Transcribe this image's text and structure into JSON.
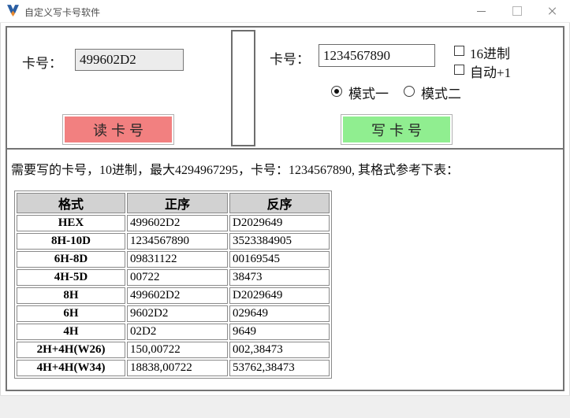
{
  "window": {
    "title": "自定义写卡号软件",
    "controls": [
      "minimize-icon",
      "maximize-icon",
      "close-icon"
    ]
  },
  "top_panel": {
    "read_section": {
      "card_label": "卡号：",
      "card_value": "499602D2",
      "read_button_label": "读卡号"
    },
    "write_section": {
      "card_label": "卡号：",
      "card_value": "1234567890",
      "checkboxes": [
        {
          "label": "16进制",
          "checked": false
        },
        {
          "label": "自动+1",
          "checked": false
        }
      ],
      "radios": [
        {
          "label": "模式一",
          "selected": true
        },
        {
          "label": "模式二",
          "selected": false
        }
      ],
      "write_button_label": "写卡号"
    }
  },
  "description": "需要写的卡号，10进制，最大4294967295，卡号：1234567890, 其格式参考下表：",
  "format_table": {
    "headers": [
      "格式",
      "正序",
      "反序"
    ],
    "rows": [
      [
        "HEX",
        "499602D2",
        "D2029649"
      ],
      [
        "8H-10D",
        "1234567890",
        "3523384905"
      ],
      [
        "6H-8D",
        "09831122",
        "00169545"
      ],
      [
        "4H-5D",
        "00722",
        "38473"
      ],
      [
        "8H",
        "499602D2",
        "D2029649"
      ],
      [
        "6H",
        "9602D2",
        "029649"
      ],
      [
        "4H",
        "02D2",
        "9649"
      ],
      [
        "2H+4H(W26)",
        "150,00722",
        "002,38473"
      ],
      [
        "4H+4H(W34)",
        "18838,00722",
        "53762,38473"
      ]
    ]
  },
  "colors": {
    "read_button": "#f28080",
    "write_button": "#90ee90",
    "table_header_bg": "#d2d2d2",
    "logo_blue": "#2b5fa3",
    "logo_orange": "#e8882d"
  }
}
